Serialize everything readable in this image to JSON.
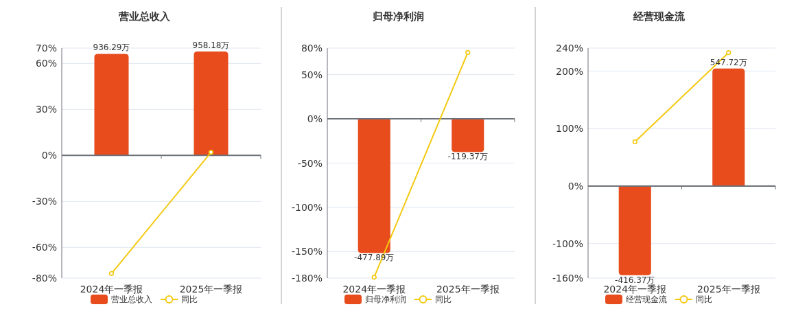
{
  "chart_data": [
    {
      "type": "bar",
      "title": "营业总收入",
      "categories": [
        "2024年一季报",
        "2025年一季报"
      ],
      "ylim": [
        -80,
        70
      ],
      "yticks": [
        {
          "value": -80,
          "label": "-80%"
        },
        {
          "value": -60,
          "label": "-60%"
        },
        {
          "value": -30,
          "label": "-30%"
        },
        {
          "value": 0,
          "label": "0%"
        },
        {
          "value": 30,
          "label": "30%"
        },
        {
          "value": 60,
          "label": "60%"
        },
        {
          "value": 70,
          "label": "70%"
        }
      ],
      "y2lim": [
        -1132,
        990
      ],
      "grid": "y",
      "legend": "bottom",
      "series": [
        {
          "name": "营业总收入",
          "axis": "y2",
          "color": "#e84b1c",
          "values": [
            936.29,
            958.18
          ],
          "value_labels": [
            "936.29万",
            "958.18万"
          ]
        },
        {
          "name": "同比",
          "type": "line",
          "color": "#f4c910",
          "marker": "circle",
          "values": [
            -77,
            2
          ]
        }
      ]
    },
    {
      "type": "bar",
      "title": "归母净利润",
      "categories": [
        "2024年一季报",
        "2025年一季报"
      ],
      "ylim": [
        -180,
        80
      ],
      "yticks": [
        {
          "value": -180,
          "label": "-180%"
        },
        {
          "value": -150,
          "label": "-150%"
        },
        {
          "value": -100,
          "label": "-100%"
        },
        {
          "value": -50,
          "label": "-50%"
        },
        {
          "value": 0,
          "label": "0%"
        },
        {
          "value": 50,
          "label": "50%"
        },
        {
          "value": 80,
          "label": "80%"
        }
      ],
      "y2lim": [
        -567,
        250
      ],
      "grid": "y",
      "legend": "bottom",
      "series": [
        {
          "name": "归母净利润",
          "axis": "y2",
          "color": "#e84b1c",
          "values": [
            -477.89,
            -119.37
          ],
          "value_labels": [
            "-477.89万",
            "-119.37万"
          ]
        },
        {
          "name": "同比",
          "type": "line",
          "color": "#f4c910",
          "marker": "circle",
          "values": [
            -179,
            75
          ]
        }
      ]
    },
    {
      "type": "bar",
      "title": "经营现金流",
      "categories": [
        "2024年一季报",
        "2025年一季报"
      ],
      "ylim": [
        -160,
        240
      ],
      "yticks": [
        {
          "value": -160,
          "label": "-160%"
        },
        {
          "value": -100,
          "label": "-100%"
        },
        {
          "value": 0,
          "label": "0%"
        },
        {
          "value": 100,
          "label": "100%"
        },
        {
          "value": 200,
          "label": "200%"
        },
        {
          "value": 240,
          "label": "240%"
        }
      ],
      "y2lim": [
        -430,
        643
      ],
      "grid": "y",
      "legend": "bottom",
      "series": [
        {
          "name": "经营现金流",
          "axis": "y2",
          "color": "#e84b1c",
          "values": [
            -416.37,
            547.72
          ],
          "value_labels": [
            "-416.37万",
            "547.72万"
          ]
        },
        {
          "name": "同比",
          "type": "line",
          "color": "#f4c910",
          "marker": "circle",
          "values": [
            77,
            232
          ]
        }
      ]
    }
  ]
}
